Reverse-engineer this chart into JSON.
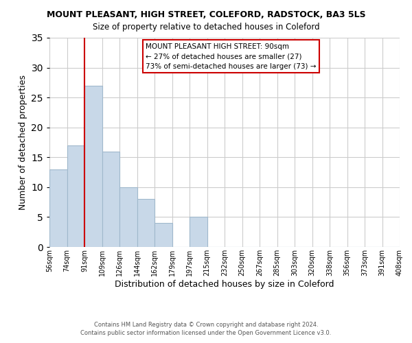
{
  "title": "MOUNT PLEASANT, HIGH STREET, COLEFORD, RADSTOCK, BA3 5LS",
  "subtitle": "Size of property relative to detached houses in Coleford",
  "xlabel": "Distribution of detached houses by size in Coleford",
  "ylabel": "Number of detached properties",
  "bar_color": "#c8d8e8",
  "bar_edge_color": "#a0b8cc",
  "marker_color": "#cc0000",
  "marker_index": 2,
  "bin_labels": [
    "56sqm",
    "74sqm",
    "91sqm",
    "109sqm",
    "126sqm",
    "144sqm",
    "162sqm",
    "179sqm",
    "197sqm",
    "215sqm",
    "232sqm",
    "250sqm",
    "267sqm",
    "285sqm",
    "303sqm",
    "320sqm",
    "338sqm",
    "356sqm",
    "373sqm",
    "391sqm",
    "408sqm"
  ],
  "bar_values": [
    13,
    17,
    27,
    16,
    10,
    8,
    4,
    0,
    5,
    0,
    0,
    0,
    0,
    0,
    0,
    0,
    0,
    0,
    0,
    0
  ],
  "ylim": [
    0,
    35
  ],
  "yticks": [
    0,
    5,
    10,
    15,
    20,
    25,
    30,
    35
  ],
  "annotation_title": "MOUNT PLEASANT HIGH STREET: 90sqm",
  "annotation_line2": "← 27% of detached houses are smaller (27)",
  "annotation_line3": "73% of semi-detached houses are larger (73) →",
  "annotation_box_color": "#ffffff",
  "annotation_box_edge_color": "#cc0000",
  "footer_line1": "Contains HM Land Registry data © Crown copyright and database right 2024.",
  "footer_line2": "Contains public sector information licensed under the Open Government Licence v3.0.",
  "background_color": "#ffffff",
  "grid_color": "#cccccc"
}
